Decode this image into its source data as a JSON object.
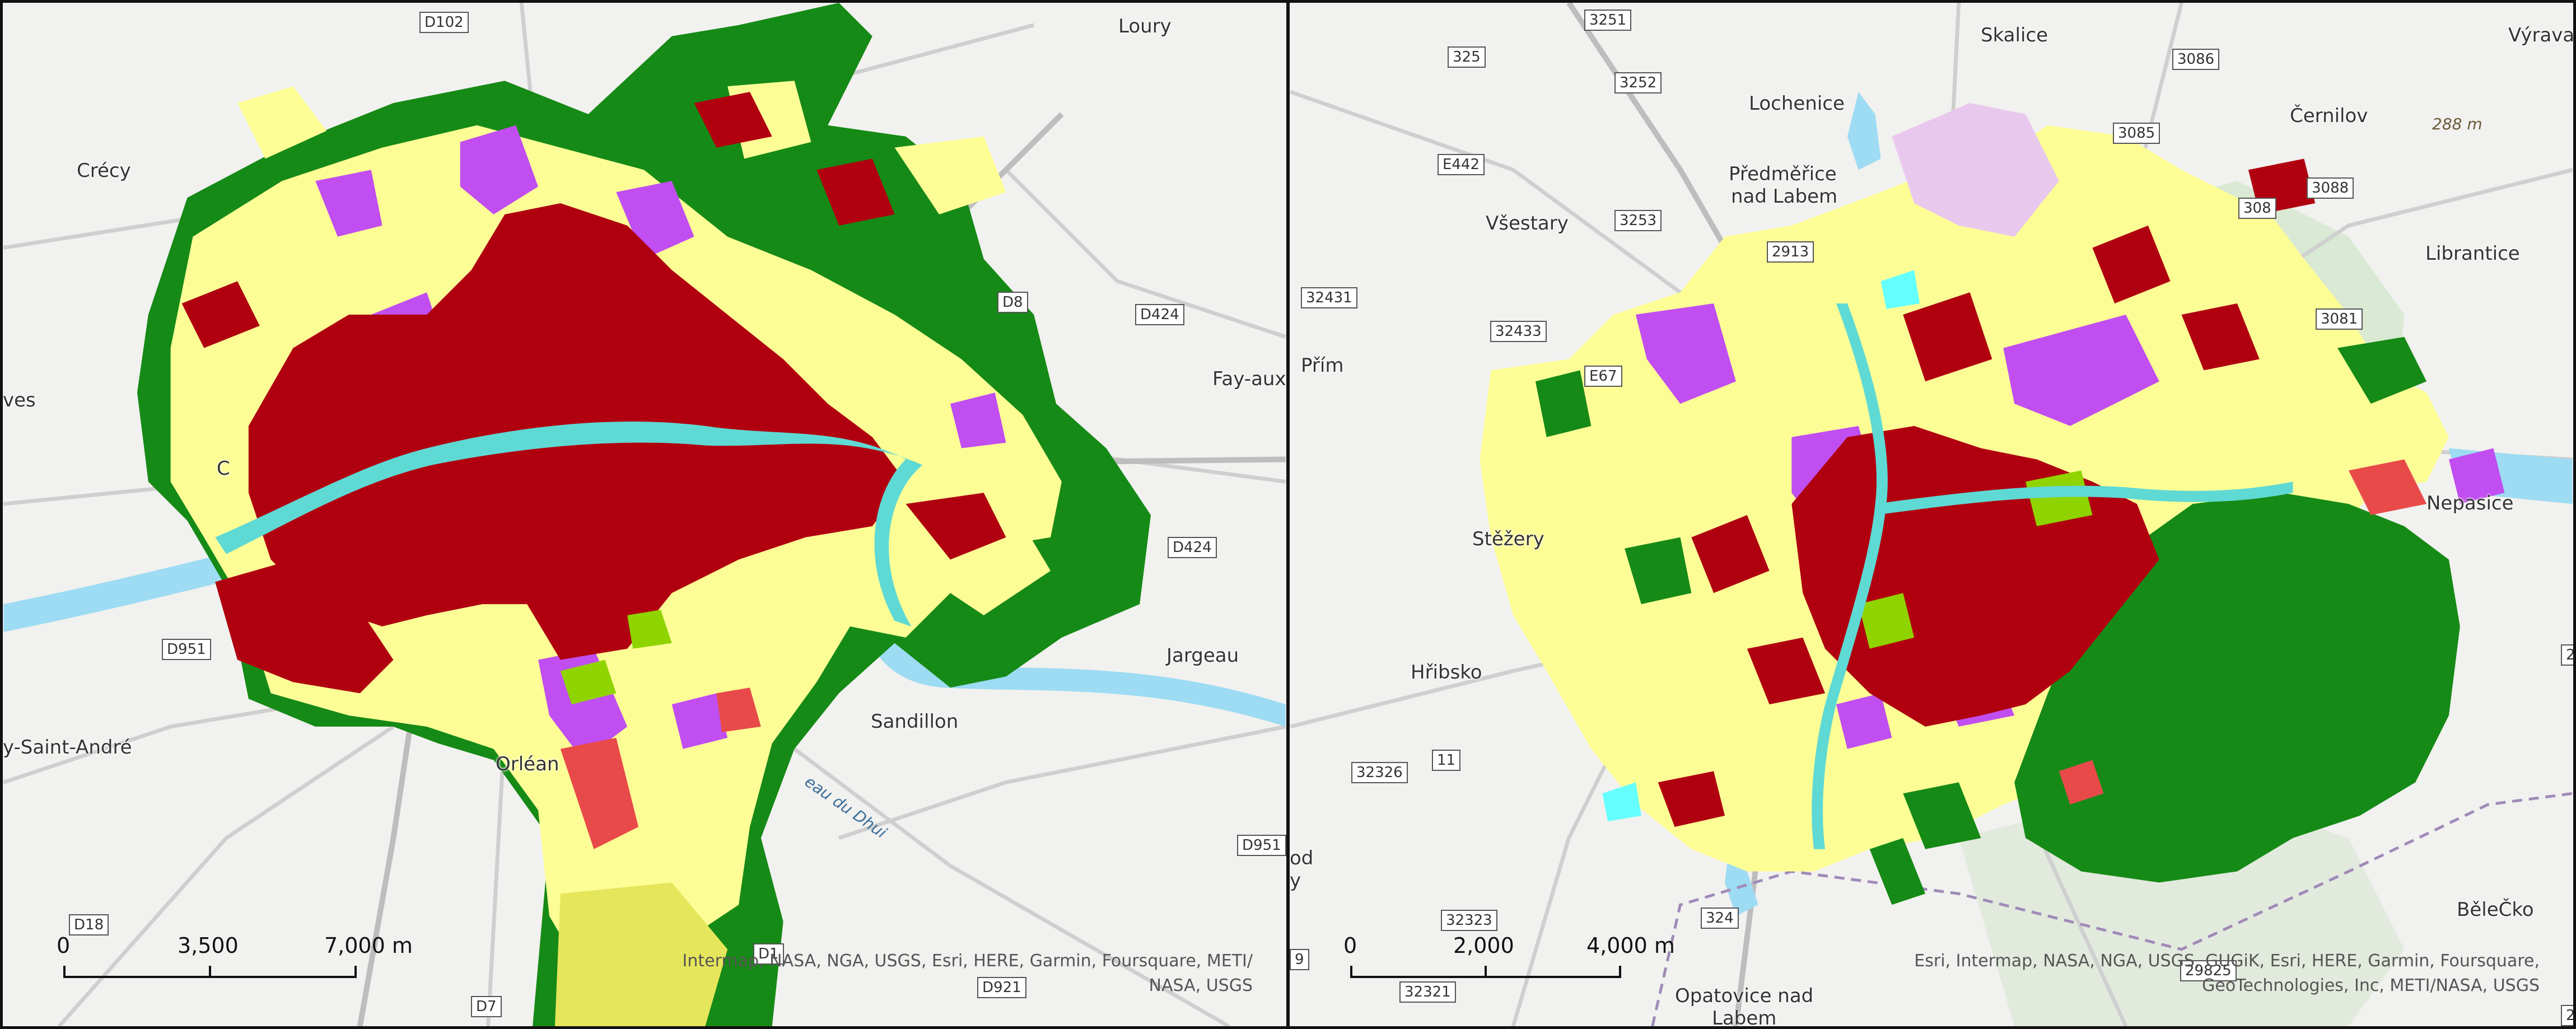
{
  "colors": {
    "basemap": "#f1f1ef",
    "road": "#cfcfcf",
    "water": "#9ddcf3",
    "river_fill": "#5fd9d4",
    "forest": "#168a16",
    "yellow_class": "#fdfd96",
    "yellow_dark_class": "#e6e65c",
    "urban_dark": "#b00010",
    "industrial": "#c04ef0",
    "light_green": "#8fd400",
    "red_light": "#e84a4a",
    "pink": "#e9c8ee",
    "cyan": "#66ffff",
    "park_green_faint": "#cfe6c7"
  },
  "left_map": {
    "places": [
      {
        "name": "Loury"
      },
      {
        "name": "Crécy"
      },
      {
        "name": "Fay-aux-"
      },
      {
        "name": "ves"
      },
      {
        "name": "Jargeau"
      },
      {
        "name": "Sandillon"
      },
      {
        "name": "y-Saint-André"
      },
      {
        "name": "Orléan"
      },
      {
        "name": "C"
      }
    ],
    "road_shields": [
      "D102",
      "D8",
      "D424",
      "D424",
      "D951",
      "D951",
      "D18",
      "D7",
      "D921",
      "D1"
    ],
    "water_label": "eau du Dhui",
    "scale": {
      "labels": [
        "0",
        "3,500",
        "7,000 m"
      ]
    },
    "attribution": [
      "Intermap, NASA, NGA, USGS, Esri, HERE, Garmin, Foursquare, METI/",
      "NASA, USGS"
    ]
  },
  "right_map": {
    "places": [
      {
        "name": "Výrava"
      },
      {
        "name": "Skalice"
      },
      {
        "name": "Lochenice"
      },
      {
        "name": "Černilov"
      },
      {
        "name": "Předměřice"
      },
      {
        "name": "nad Labem"
      },
      {
        "name": "Všestary"
      },
      {
        "name": "Librantice"
      },
      {
        "name": "Přím"
      },
      {
        "name": "Stěžery"
      },
      {
        "name": "Nepasice"
      },
      {
        "name": "Hřibsko"
      },
      {
        "name": "BěleČko"
      },
      {
        "name": "Opatovice nad"
      },
      {
        "name": "Labem"
      },
      {
        "name": "od"
      },
      {
        "name": "y"
      }
    ],
    "road_shields": [
      "3251",
      "325",
      "3252",
      "3086",
      "3085",
      "E442",
      "3253",
      "308",
      "3088",
      "3081",
      "32431",
      "32433",
      "E67",
      "2913",
      "11",
      "32326",
      "32323",
      "324",
      "29825",
      "32321",
      "9",
      "2",
      "29"
    ],
    "elevation": "288 m",
    "scale": {
      "labels": [
        "0",
        "2,000",
        "4,000 m"
      ]
    },
    "attribution": [
      "Esri, Intermap, NASA, NGA, USGS, GUGiK, Esri, HERE, Garmin, Foursquare,",
      "GeoTechnologies, Inc, METI/NASA, USGS"
    ]
  }
}
